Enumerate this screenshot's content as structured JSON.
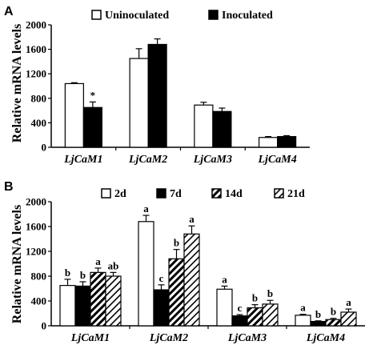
{
  "chart_data": [
    {
      "type": "bar",
      "panel_label": "A",
      "ylabel": "Relative mRNA levels",
      "ylim": [
        0,
        2000
      ],
      "yticks": [
        0,
        400,
        800,
        1200,
        1600,
        2000
      ],
      "categories": [
        "LjCaM1",
        "LjCaM2",
        "LjCaM3",
        "LjCaM4"
      ],
      "legend_position": "top",
      "series": [
        {
          "name": "Uninoculated",
          "fill": "#ffffff",
          "pattern": "none",
          "values": [
            1040,
            1450,
            690,
            160
          ],
          "errors": [
            15,
            160,
            45,
            15
          ],
          "annotations": [
            "",
            "",
            "",
            ""
          ]
        },
        {
          "name": "Inoculated",
          "fill": "#000000",
          "pattern": "none",
          "values": [
            650,
            1680,
            585,
            175
          ],
          "errors": [
            90,
            90,
            55,
            15
          ],
          "annotations": [
            "*",
            "",
            "",
            ""
          ]
        }
      ]
    },
    {
      "type": "bar",
      "panel_label": "B",
      "ylabel": "Relative mRNA levels",
      "ylim": [
        0,
        2000
      ],
      "yticks": [
        0,
        400,
        800,
        1200,
        1600,
        2000
      ],
      "categories": [
        "LjCaM1",
        "LjCaM2",
        "LjCaM3",
        "LjCaM4"
      ],
      "legend_position": "top",
      "series": [
        {
          "name": "2d",
          "fill": "#ffffff",
          "pattern": "none",
          "values": [
            650,
            1680,
            590,
            170
          ],
          "errors": [
            100,
            100,
            50,
            15
          ],
          "annotations": [
            "b",
            "a",
            "a",
            "a"
          ]
        },
        {
          "name": "7d",
          "fill": "#000000",
          "pattern": "none",
          "values": [
            640,
            580,
            160,
            70
          ],
          "errors": [
            70,
            80,
            20,
            10
          ],
          "annotations": [
            "b",
            "c",
            "c",
            "b"
          ]
        },
        {
          "name": "14d",
          "fill": "#ffffff",
          "pattern": "dense-diagonal",
          "values": [
            860,
            1080,
            290,
            100
          ],
          "errors": [
            70,
            150,
            50,
            20
          ],
          "annotations": [
            "a",
            "b",
            "b",
            "b"
          ]
        },
        {
          "name": "21d",
          "fill": "#ffffff",
          "pattern": "diagonal",
          "values": [
            800,
            1480,
            350,
            220
          ],
          "errors": [
            60,
            130,
            60,
            50
          ],
          "annotations": [
            "ab",
            "a",
            "b",
            "a"
          ]
        }
      ]
    }
  ]
}
